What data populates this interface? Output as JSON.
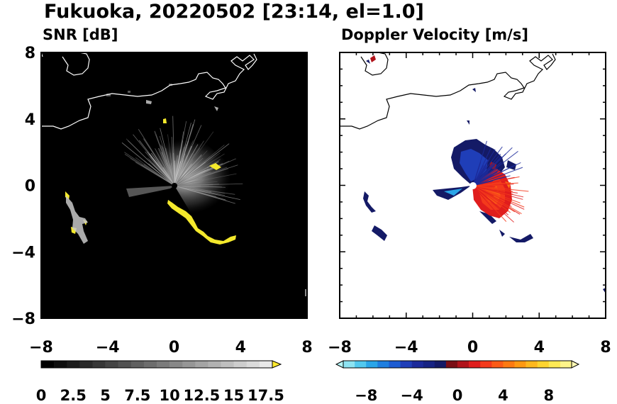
{
  "figure": {
    "title": "Fukuoka, 20220502 [23:14, el=1.0]"
  },
  "chart_data": [
    {
      "type": "heatmap",
      "title": "SNR [dB]",
      "xlim": [
        -8,
        8
      ],
      "ylim": [
        -8,
        8
      ],
      "x_ticks": [
        "−8",
        "−4",
        "0",
        "4",
        "8"
      ],
      "y_ticks": [
        "8",
        "4",
        "0",
        "−4",
        "−8"
      ],
      "colorbar": {
        "levels": [
          0,
          1,
          2,
          3,
          4,
          5,
          6,
          7,
          8,
          9,
          10,
          11,
          12,
          13,
          14,
          15,
          16,
          17,
          18
        ],
        "tick_labels": [
          "0",
          "2.5",
          "5",
          "7.5",
          "10",
          "12.5",
          "15",
          "17.5"
        ],
        "extend": "max",
        "extend_color": "#ffea2e"
      },
      "background_color": "#000000",
      "coastline_color": "#ffffff"
    },
    {
      "type": "heatmap",
      "title": "Doppler Velocity [m/s]",
      "xlim": [
        -8,
        8
      ],
      "ylim": [
        -8,
        8
      ],
      "x_ticks": [
        "−8",
        "−4",
        "0",
        "4",
        "8"
      ],
      "y_ticks": [
        "8",
        "4",
        "0",
        "−4",
        "−8"
      ],
      "colorbar": {
        "levels": [
          -10,
          10
        ],
        "tick_labels": [
          "−8",
          "−4",
          "0",
          "4",
          "8"
        ],
        "extend": "both",
        "colors": [
          "#b6f5f7",
          "#8de3f2",
          "#52c8ee",
          "#2aa5e8",
          "#1f7fe0",
          "#1d5cd2",
          "#1f3eb8",
          "#1c2a9a",
          "#172383",
          "#141a66",
          "#7a0e14",
          "#b0131a",
          "#e01d1d",
          "#f43a1c",
          "#fb5b17",
          "#fd7a12",
          "#ff9912",
          "#ffb81e",
          "#ffd42f",
          "#ffe955",
          "#fff48a",
          "#fff9b5"
        ]
      },
      "background_color": "#ffffff",
      "coastline_color": "#000000"
    }
  ]
}
